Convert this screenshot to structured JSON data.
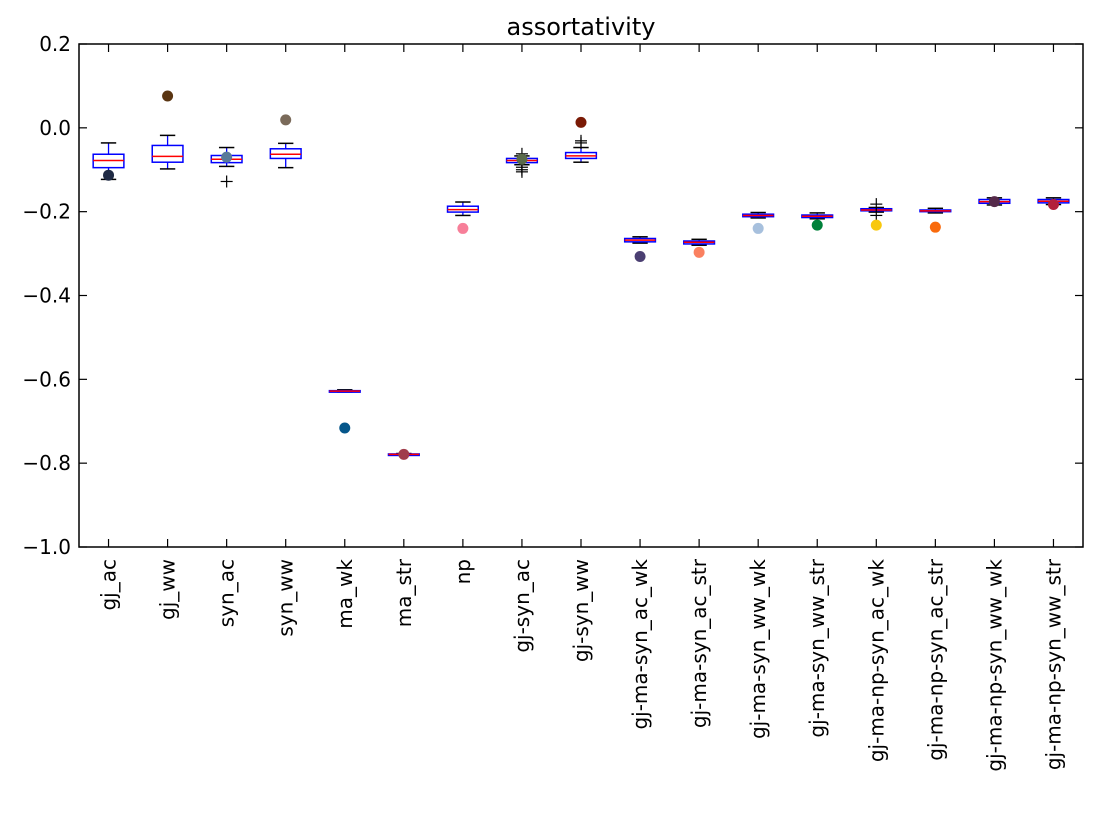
{
  "chart_data": {
    "type": "box",
    "title": "assortativity",
    "xlabel": "",
    "ylabel": "",
    "ylim": [
      -1.0,
      0.2
    ],
    "yticks": [
      0.2,
      0.0,
      -0.2,
      -0.4,
      -0.6,
      -0.8,
      -1.0
    ],
    "ytick_labels": [
      "0.2",
      "0.0",
      "−0.2",
      "−0.4",
      "−0.6",
      "−0.8",
      "−1.0"
    ],
    "categories": [
      "gj_ac",
      "gj_ww",
      "syn_ac",
      "syn_ww",
      "ma_wk",
      "ma_str",
      "np",
      "gj-syn_ac",
      "gj-syn_ww",
      "gj-ma-syn_ac_wk",
      "gj-ma-syn_ac_str",
      "gj-ma-syn_ww_wk",
      "gj-ma-syn_ww_str",
      "gj-ma-np-syn_ac_wk",
      "gj-ma-np-syn_ac_str",
      "gj-ma-np-syn_ww_wk",
      "gj-ma-np-syn_ww_str"
    ],
    "boxes": [
      {
        "whisker_low": -0.123,
        "q1": -0.095,
        "median": -0.078,
        "q3": -0.063,
        "whisker_high": -0.036,
        "fliers": []
      },
      {
        "whisker_low": -0.098,
        "q1": -0.082,
        "median": -0.068,
        "q3": -0.042,
        "whisker_high": -0.018,
        "fliers": []
      },
      {
        "whisker_low": -0.092,
        "q1": -0.083,
        "median": -0.075,
        "q3": -0.066,
        "whisker_high": -0.047,
        "fliers": [
          -0.128
        ]
      },
      {
        "whisker_low": -0.095,
        "q1": -0.073,
        "median": -0.063,
        "q3": -0.05,
        "whisker_high": -0.037,
        "fliers": []
      },
      {
        "whisker_low": -0.63,
        "q1": -0.629,
        "median": -0.628,
        "q3": -0.627,
        "whisker_high": -0.625,
        "fliers": []
      },
      {
        "whisker_low": -0.781,
        "q1": -0.78,
        "median": -0.779,
        "q3": -0.778,
        "whisker_high": -0.777,
        "fliers": []
      },
      {
        "whisker_low": -0.209,
        "q1": -0.201,
        "median": -0.195,
        "q3": -0.187,
        "whisker_high": -0.177,
        "fliers": []
      },
      {
        "whisker_low": -0.088,
        "q1": -0.083,
        "median": -0.078,
        "q3": -0.073,
        "whisker_high": -0.067,
        "fliers": [
          -0.094,
          -0.1,
          -0.105,
          -0.062
        ]
      },
      {
        "whisker_low": -0.082,
        "q1": -0.073,
        "median": -0.067,
        "q3": -0.059,
        "whisker_high": -0.047,
        "fliers": [
          -0.036,
          -0.031
        ]
      },
      {
        "whisker_low": -0.275,
        "q1": -0.272,
        "median": -0.268,
        "q3": -0.264,
        "whisker_high": -0.26,
        "fliers": []
      },
      {
        "whisker_low": -0.28,
        "q1": -0.277,
        "median": -0.273,
        "q3": -0.27,
        "whisker_high": -0.266,
        "fliers": []
      },
      {
        "whisker_low": -0.215,
        "q1": -0.212,
        "median": -0.209,
        "q3": -0.206,
        "whisker_high": -0.202,
        "fliers": []
      },
      {
        "whisker_low": -0.217,
        "q1": -0.214,
        "median": -0.211,
        "q3": -0.208,
        "whisker_high": -0.203,
        "fliers": []
      },
      {
        "whisker_low": -0.201,
        "q1": -0.198,
        "median": -0.196,
        "q3": -0.193,
        "whisker_high": -0.19,
        "fliers": [
          -0.209,
          -0.182
        ]
      },
      {
        "whisker_low": -0.203,
        "q1": -0.2,
        "median": -0.198,
        "q3": -0.196,
        "whisker_high": -0.192,
        "fliers": []
      },
      {
        "whisker_low": -0.184,
        "q1": -0.18,
        "median": -0.176,
        "q3": -0.171,
        "whisker_high": -0.167,
        "fliers": []
      },
      {
        "whisker_low": -0.183,
        "q1": -0.179,
        "median": -0.175,
        "q3": -0.171,
        "whisker_high": -0.167,
        "fliers": []
      }
    ],
    "points": [
      {
        "y": -0.113,
        "color": "#1f2a44"
      },
      {
        "y": 0.076,
        "color": "#5a3512"
      },
      {
        "y": -0.07,
        "color": "#5a7a9a"
      },
      {
        "y": 0.019,
        "color": "#7a6a5a"
      },
      {
        "y": -0.716,
        "color": "#05568a"
      },
      {
        "y": -0.779,
        "color": "#a03d4b"
      },
      {
        "y": -0.24,
        "color": "#f77f99"
      },
      {
        "y": -0.075,
        "color": "#5a6a4a"
      },
      {
        "y": 0.013,
        "color": "#7a1a05"
      },
      {
        "y": -0.307,
        "color": "#4b3f72"
      },
      {
        "y": -0.297,
        "color": "#fa8060"
      },
      {
        "y": -0.24,
        "color": "#a7c0dd"
      },
      {
        "y": -0.232,
        "color": "#00813a"
      },
      {
        "y": -0.232,
        "color": "#f8c80d"
      },
      {
        "y": -0.237,
        "color": "#f96a0c"
      },
      {
        "y": -0.176,
        "color": "#552a4a"
      },
      {
        "y": -0.183,
        "color": "#b2203a"
      }
    ],
    "colors": {
      "box": "#0000ff",
      "median": "#ff0000",
      "whisker": "#000000",
      "flier": "#000000"
    },
    "grid": false,
    "legend": "none"
  }
}
